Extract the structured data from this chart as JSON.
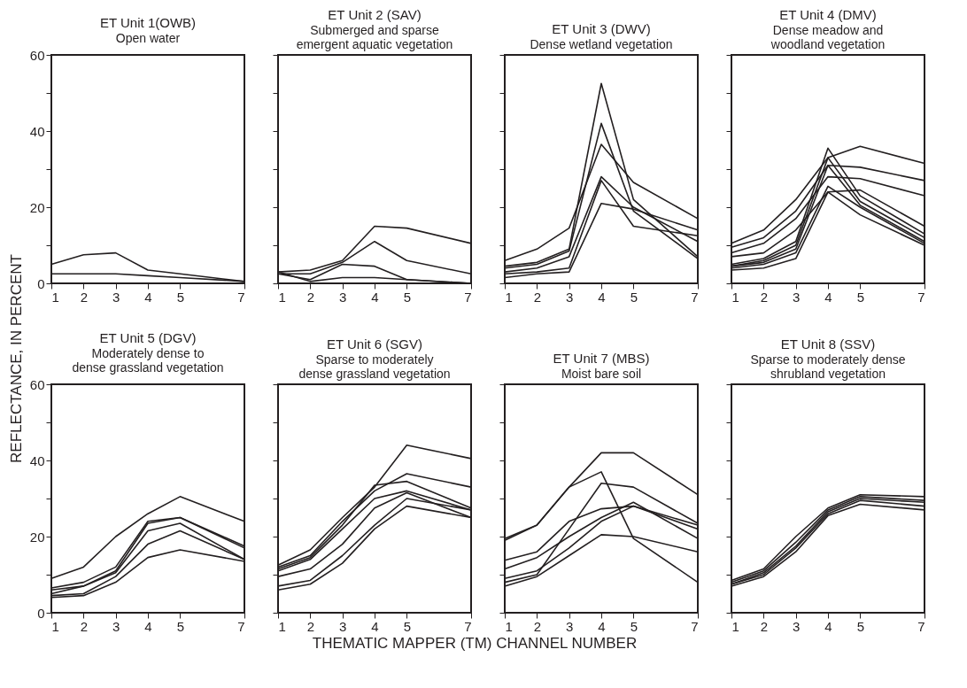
{
  "chart_data": [
    {
      "type": "line",
      "title": "ET Unit 1(OWB)",
      "subtitle": "Open water",
      "ylabel": "REFLECTANCE, IN PERCENT",
      "x": [
        1,
        2,
        3,
        4,
        5,
        7
      ],
      "xlim": [
        1,
        7
      ],
      "xticks": [
        1,
        2,
        3,
        4,
        5,
        7
      ],
      "ylim": [
        0,
        60
      ],
      "yticks": [
        0,
        {
          "value": 10,
          "label": null
        },
        20,
        {
          "value": 30,
          "label": null
        },
        40,
        {
          "value": 50,
          "label": null
        },
        60
      ],
      "grid": false,
      "marker": "none",
      "line_style": "solid",
      "series": [
        {
          "color": "#231f20",
          "values": [
            5,
            7.5,
            8,
            3.5,
            2.5,
            0.5
          ]
        },
        {
          "color": "#231f20",
          "values": [
            2.5,
            2.5,
            2.5,
            2,
            1.5,
            0.5
          ]
        }
      ]
    },
    {
      "type": "line",
      "title": "ET Unit 2 (SAV)",
      "subtitle": "Submerged and sparse\nemergent aquatic vegetation",
      "x": [
        1,
        2,
        3,
        4,
        5,
        7
      ],
      "xlim": [
        1,
        7
      ],
      "xticks": [
        1,
        2,
        3,
        4,
        5,
        7
      ],
      "ylim": [
        0,
        60
      ],
      "yticks": [
        0,
        {
          "value": 10,
          "label": null
        },
        20,
        {
          "value": 30,
          "label": null
        },
        40,
        {
          "value": 50,
          "label": null
        },
        60
      ],
      "tick_labels": "x",
      "grid": false,
      "marker": "none",
      "line_style": "solid",
      "series": [
        {
          "color": "#231f20",
          "values": [
            3,
            3.5,
            6,
            15,
            14.5,
            10.5
          ]
        },
        {
          "color": "#231f20",
          "values": [
            2.5,
            2.5,
            5.5,
            11,
            6,
            2.5
          ]
        },
        {
          "color": "#231f20",
          "values": [
            2.5,
            1,
            5,
            4.5,
            1,
            0
          ]
        },
        {
          "color": "#231f20",
          "values": [
            3,
            0.5,
            1.5,
            1.5,
            1,
            0
          ]
        }
      ]
    },
    {
      "type": "line",
      "title": "ET Unit 3 (DWV)",
      "subtitle": "Dense wetland vegetation",
      "x": [
        1,
        2,
        3,
        4,
        5,
        7
      ],
      "xlim": [
        1,
        7
      ],
      "xticks": [
        1,
        2,
        3,
        4,
        5,
        7
      ],
      "ylim": [
        0,
        60
      ],
      "yticks": [
        0,
        {
          "value": 10,
          "label": null
        },
        20,
        {
          "value": 30,
          "label": null
        },
        40,
        {
          "value": 50,
          "label": null
        },
        60
      ],
      "tick_labels": "x",
      "grid": false,
      "marker": "none",
      "line_style": "solid",
      "series": [
        {
          "color": "#231f20",
          "values": [
            6,
            9,
            14.5,
            36.5,
            26.5,
            17
          ]
        },
        {
          "color": "#231f20",
          "values": [
            4.5,
            5.5,
            9,
            52.5,
            22,
            7
          ]
        },
        {
          "color": "#231f20",
          "values": [
            4,
            5,
            8.5,
            42,
            19,
            6.5
          ]
        },
        {
          "color": "#231f20",
          "values": [
            3,
            4,
            7,
            28,
            20,
            11
          ]
        },
        {
          "color": "#231f20",
          "values": [
            2.5,
            3,
            4,
            27,
            15,
            12.5
          ]
        },
        {
          "color": "#231f20",
          "values": [
            1.5,
            2.5,
            3,
            21,
            19.5,
            14
          ]
        }
      ]
    },
    {
      "type": "line",
      "title": "ET Unit 4 (DMV)",
      "subtitle": "Dense meadow and\nwoodland vegetation",
      "x": [
        1,
        2,
        3,
        4,
        5,
        7
      ],
      "xlim": [
        1,
        7
      ],
      "xticks": [
        1,
        2,
        3,
        4,
        5,
        7
      ],
      "ylim": [
        0,
        60
      ],
      "yticks": [
        0,
        {
          "value": 10,
          "label": null
        },
        20,
        {
          "value": 30,
          "label": null
        },
        40,
        {
          "value": 50,
          "label": null
        },
        60
      ],
      "tick_labels": "x",
      "grid": false,
      "marker": "none",
      "line_style": "solid",
      "series": [
        {
          "color": "#231f20",
          "values": [
            10.5,
            14,
            22,
            33,
            36,
            31.5
          ]
        },
        {
          "color": "#231f20",
          "values": [
            9.5,
            12,
            19,
            31,
            30.5,
            27
          ]
        },
        {
          "color": "#231f20",
          "values": [
            8,
            10.5,
            17,
            28,
            27.5,
            23
          ]
        },
        {
          "color": "#231f20",
          "values": [
            7,
            8,
            14,
            24,
            24.5,
            15
          ]
        },
        {
          "color": "#231f20",
          "values": [
            5,
            6.5,
            11,
            35.5,
            23,
            13
          ]
        },
        {
          "color": "#231f20",
          "values": [
            4.5,
            6,
            10,
            33,
            21.5,
            12
          ]
        },
        {
          "color": "#231f20",
          "values": [
            4.5,
            5.5,
            9,
            31,
            20.5,
            11
          ]
        },
        {
          "color": "#231f20",
          "values": [
            4,
            5,
            8,
            25.5,
            20,
            10.5
          ]
        },
        {
          "color": "#231f20",
          "values": [
            3.5,
            4,
            6.5,
            24,
            18,
            10
          ]
        }
      ]
    },
    {
      "type": "line",
      "title": "ET Unit 5 (DGV)",
      "subtitle": "Moderately dense to\ndense grassland vegetation",
      "x": [
        1,
        2,
        3,
        4,
        5,
        7
      ],
      "xlim": [
        1,
        7
      ],
      "xticks": [
        1,
        2,
        3,
        4,
        5,
        7
      ],
      "ylim": [
        0,
        60
      ],
      "yticks": [
        0,
        {
          "value": 10,
          "label": null
        },
        20,
        {
          "value": 30,
          "label": null
        },
        40,
        {
          "value": 50,
          "label": null
        },
        60
      ],
      "grid": false,
      "marker": "none",
      "line_style": "solid",
      "series": [
        {
          "color": "#231f20",
          "values": [
            9,
            12,
            20,
            26,
            30.5,
            24
          ]
        },
        {
          "color": "#231f20",
          "values": [
            6.5,
            8,
            12,
            24,
            25,
            17.5
          ]
        },
        {
          "color": "#231f20",
          "values": [
            6,
            7,
            11,
            23.5,
            25,
            17
          ]
        },
        {
          "color": "#231f20",
          "values": [
            5,
            7,
            10.5,
            21.5,
            23.5,
            14
          ]
        },
        {
          "color": "#231f20",
          "values": [
            4.5,
            5,
            9.5,
            18,
            21.5,
            14
          ]
        },
        {
          "color": "#231f20",
          "values": [
            4,
            4.5,
            8,
            14.5,
            16.5,
            13.5
          ]
        }
      ]
    },
    {
      "type": "line",
      "title": "ET Unit 6 (SGV)",
      "subtitle": "Sparse to moderately\ndense grassland vegetation",
      "xlabel": "THEMATIC MAPPER (TM) CHANNEL NUMBER",
      "x": [
        1,
        2,
        3,
        4,
        5,
        7
      ],
      "xlim": [
        1,
        7
      ],
      "xticks": [
        1,
        2,
        3,
        4,
        5,
        7
      ],
      "ylim": [
        0,
        60
      ],
      "yticks": [
        0,
        {
          "value": 10,
          "label": null
        },
        20,
        {
          "value": 30,
          "label": null
        },
        40,
        {
          "value": 50,
          "label": null
        },
        60
      ],
      "tick_labels": "x",
      "grid": false,
      "marker": "none",
      "line_style": "solid",
      "series": [
        {
          "color": "#231f20",
          "values": [
            12.5,
            16.5,
            25,
            33,
            44,
            40.5
          ]
        },
        {
          "color": "#231f20",
          "values": [
            12,
            15,
            24,
            32,
            36.5,
            33
          ]
        },
        {
          "color": "#231f20",
          "values": [
            11.5,
            14.5,
            23,
            33.5,
            34.5,
            27.5
          ]
        },
        {
          "color": "#231f20",
          "values": [
            11,
            14,
            22,
            30,
            32,
            27
          ]
        },
        {
          "color": "#231f20",
          "values": [
            9.5,
            11.5,
            18,
            27.5,
            31.5,
            25
          ]
        },
        {
          "color": "#231f20",
          "values": [
            7,
            8.5,
            15,
            23,
            30,
            27
          ]
        },
        {
          "color": "#231f20",
          "values": [
            6,
            7.5,
            13,
            22,
            28,
            25
          ]
        }
      ]
    },
    {
      "type": "line",
      "title": "ET Unit 7 (MBS)",
      "subtitle": "Moist bare soil",
      "x": [
        1,
        2,
        3,
        4,
        5,
        7
      ],
      "xlim": [
        1,
        7
      ],
      "xticks": [
        1,
        2,
        3,
        4,
        5,
        7
      ],
      "ylim": [
        0,
        60
      ],
      "yticks": [
        0,
        {
          "value": 10,
          "label": null
        },
        20,
        {
          "value": 30,
          "label": null
        },
        40,
        {
          "value": 50,
          "label": null
        },
        60
      ],
      "tick_labels": "x",
      "grid": false,
      "marker": "none",
      "line_style": "solid",
      "series": [
        {
          "color": "#231f20",
          "values": [
            19.5,
            23,
            33,
            42,
            42,
            31
          ]
        },
        {
          "color": "#231f20",
          "values": [
            19,
            23,
            33,
            37,
            19.5,
            8
          ]
        },
        {
          "color": "#231f20",
          "values": [
            8,
            10,
            22,
            34,
            33,
            23.5
          ]
        },
        {
          "color": "#231f20",
          "values": [
            13.8,
            16,
            24,
            27.3,
            28,
            22
          ]
        },
        {
          "color": "#231f20",
          "values": [
            11.5,
            14.5,
            20,
            25,
            29,
            19.5
          ]
        },
        {
          "color": "#231f20",
          "values": [
            9,
            11,
            17,
            24,
            28,
            23
          ]
        },
        {
          "color": "#231f20",
          "values": [
            7,
            9.5,
            15,
            20.5,
            20,
            16
          ]
        }
      ]
    },
    {
      "type": "line",
      "title": "ET Unit 8 (SSV)",
      "subtitle": "Sparse to moderately dense\nshrubland vegetation",
      "x": [
        1,
        2,
        3,
        4,
        5,
        7
      ],
      "xlim": [
        1,
        7
      ],
      "xticks": [
        1,
        2,
        3,
        4,
        5,
        7
      ],
      "ylim": [
        0,
        60
      ],
      "yticks": [
        0,
        {
          "value": 10,
          "label": null
        },
        20,
        {
          "value": 30,
          "label": null
        },
        40,
        {
          "value": 50,
          "label": null
        },
        60
      ],
      "tick_labels": "x",
      "grid": false,
      "marker": "none",
      "line_style": "solid",
      "series": [
        {
          "color": "#231f20",
          "values": [
            8.5,
            11.5,
            20,
            27.5,
            31,
            30.5
          ]
        },
        {
          "color": "#231f20",
          "values": [
            8,
            11,
            18.5,
            27,
            30.5,
            29.5
          ]
        },
        {
          "color": "#231f20",
          "values": [
            7.5,
            10.5,
            17.5,
            26.5,
            30,
            29
          ]
        },
        {
          "color": "#231f20",
          "values": [
            7.5,
            10,
            17,
            26,
            29.5,
            28
          ]
        },
        {
          "color": "#231f20",
          "values": [
            7,
            9.5,
            16,
            25.5,
            28.5,
            27
          ]
        }
      ]
    }
  ]
}
